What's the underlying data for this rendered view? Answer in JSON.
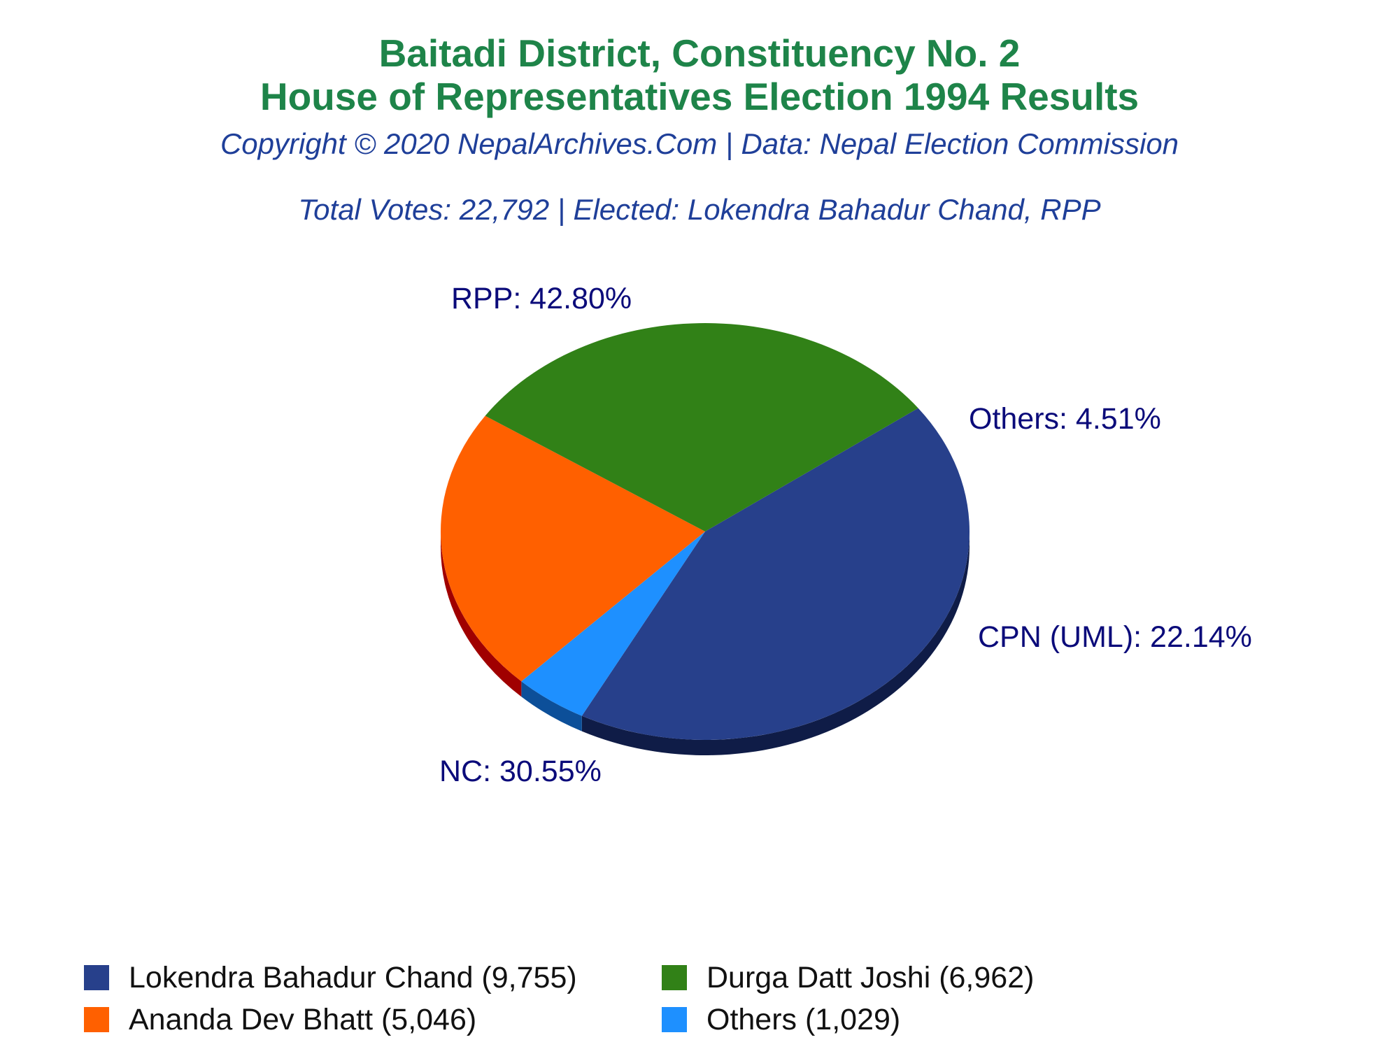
{
  "chart_data": {
    "type": "pie",
    "title": "Baitadi District, Constituency No. 2",
    "subtitle": "House of Representatives Election 1994 Results",
    "copyright": "Copyright © 2020 NepalArchives.Com | Data: Nepal Election Commission",
    "summary": "Total Votes: 22,792 | Elected: Lokendra Bahadur Chand, RPP",
    "slices": [
      {
        "label": "RPP: 42.80%",
        "value": 42.8,
        "color": "#27408b",
        "side_color": "#0f1c47"
      },
      {
        "label": "Others: 4.51%",
        "value": 4.51,
        "color": "#1e90ff",
        "side_color": "#0c4f99"
      },
      {
        "label": "CPN (UML): 22.14%",
        "value": 22.14,
        "color": "#ff6000",
        "side_color": "#a00000"
      },
      {
        "label": "NC: 30.55%",
        "value": 30.55,
        "color": "#318117",
        "side_color": "#062904"
      }
    ],
    "legend": [
      {
        "text": "Lokendra Bahadur Chand (9,755)",
        "color": "#27408b"
      },
      {
        "text": "Durga Datt Joshi (6,962)",
        "color": "#318117"
      },
      {
        "text": "Ananda Dev Bhatt (5,046)",
        "color": "#ff6000"
      },
      {
        "text": "Others (1,029)",
        "color": "#1e90ff"
      }
    ]
  }
}
